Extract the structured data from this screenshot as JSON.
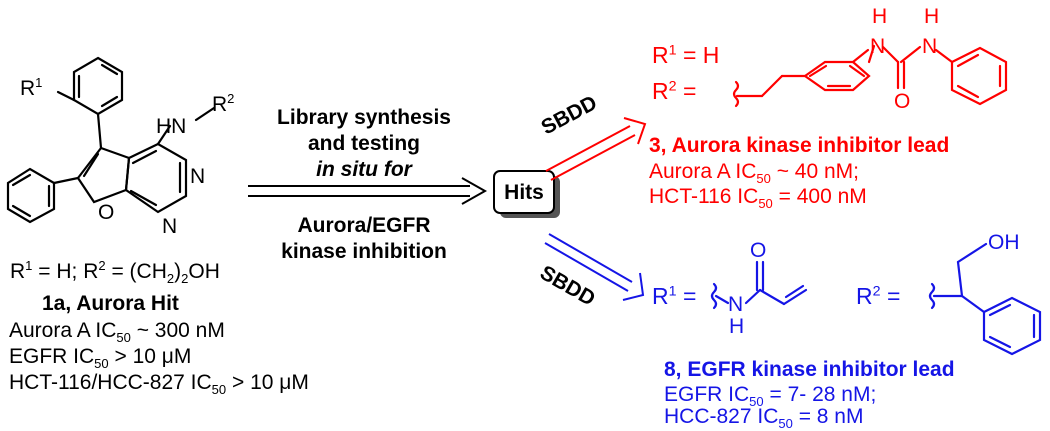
{
  "colors": {
    "black": "#000000",
    "red": "#ff0000",
    "blue": "#1515e6"
  },
  "hit": {
    "caption": "1a, Aurora Hit",
    "substituents": {
      "r1": "R",
      "r1_sup": "1",
      "r1_val": " = H; ",
      "r2": "R",
      "r2_sup": "2",
      "r2_eq": " = (CH",
      "r2_sub": "2",
      "r2_tail": ")",
      "r2_sub2": "2",
      "r2_oh": "OH"
    },
    "data_lines": [
      {
        "pre": "Aurora A IC",
        "sub": "50",
        "post": " ~ 300 nM"
      },
      {
        "pre": "EGFR  IC",
        "sub": "50",
        "post": " > 10 μM"
      },
      {
        "pre": "HCT-116/HCC-827  IC",
        "sub": "50",
        "post": " > 10 μM"
      }
    ]
  },
  "structure_labels": {
    "r1": "R",
    "r1_sup": "1",
    "hn": "HN",
    "r2": "R",
    "r2_sup": "2",
    "n_top": "N",
    "n_bottom": "N",
    "o_furan": "O"
  },
  "middle": {
    "line1": "Library synthesis",
    "line2": "and testing",
    "line3": "in situ for",
    "line4": "Aurora/EGFR",
    "line5": "kinase inhibition"
  },
  "hits_box": "Hits",
  "sbdd_top": "SBDD",
  "sbdd_bottom": "SBDD",
  "aurora_lead": {
    "r1": "R",
    "r1_sup": "1",
    "r1_val": " = H",
    "r2": "R",
    "r2_sup": "2",
    "r2_eq": " =",
    "atoms": {
      "h1": "H",
      "n1": "N",
      "h2": "H",
      "n2": "N",
      "o": "O"
    },
    "title": "3, Aurora kinase inhibitor lead",
    "lines": [
      {
        "pre": "Aurora A IC",
        "sub": "50",
        "post": " ~ 40 nM;"
      },
      {
        "pre": "HCT-116 IC",
        "sub": "50",
        "post": " = 400 nM"
      }
    ]
  },
  "egfr_lead": {
    "r1": "R",
    "r1_sup": "1",
    "r1_eq": " =",
    "r2": "R",
    "r2_sup": "2",
    "r2_eq": " =",
    "atoms": {
      "o": "O",
      "n": "N",
      "h": "H",
      "oh": "OH"
    },
    "title": "8, EGFR kinase inhibitor lead",
    "lines": [
      {
        "pre": "EGFR  IC",
        "sub": "50",
        "post": " = 7- 28 nM;"
      },
      {
        "pre": "HCC-827 IC",
        "sub": "50",
        "post": " = 8 nM"
      }
    ]
  }
}
